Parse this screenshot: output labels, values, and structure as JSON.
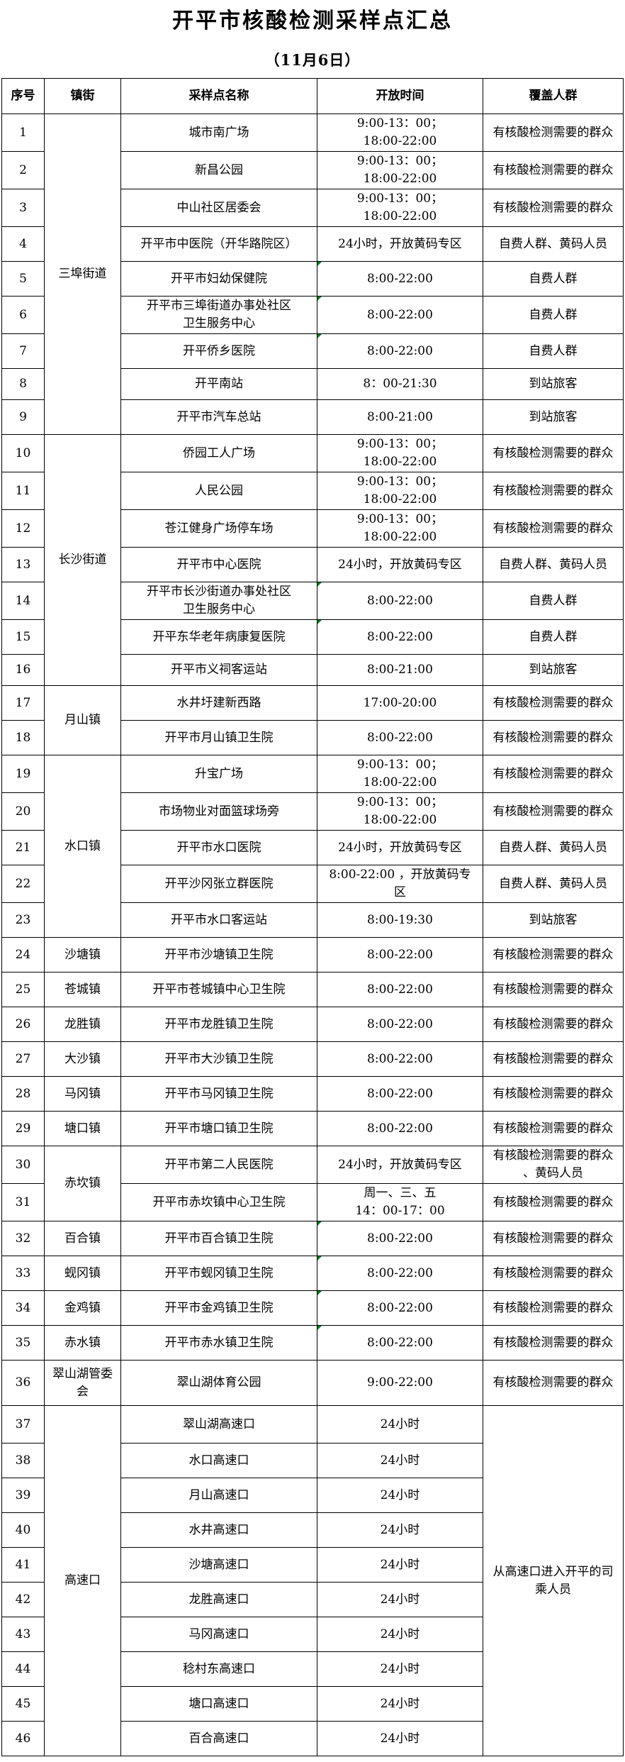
{
  "title": "开平市核酸检测采样点汇总",
  "subtitle": "（11月6日）",
  "colors": {
    "comment_marker": "#077D1E",
    "border": "#000000",
    "text": "#000000"
  },
  "table": {
    "columns": [
      "序号",
      "镇街",
      "采样点名称",
      "开放时间",
      "覆盖人群"
    ],
    "rows": [
      {
        "no": "1",
        "town": "三埠街道",
        "town_span": 9,
        "name": "城市南广场",
        "time": "9:00-13：00；\n18:00-22:00",
        "coverage": "有核酸检测需要的群众"
      },
      {
        "no": "2",
        "name": "新昌公园",
        "time": "9:00-13：00；\n18:00-22:00",
        "coverage": "有核酸检测需要的群众"
      },
      {
        "no": "3",
        "name": "中山社区居委会",
        "time": "9:00-13：00；\n18:00-22:00",
        "coverage": "有核酸检测需要的群众"
      },
      {
        "no": "4",
        "name": "开平市中医院（开华路院区）",
        "time": "24小时，开放黄码专区",
        "coverage": "自费人群、黄码人员"
      },
      {
        "no": "5",
        "name": "开平市妇幼保健院",
        "time": "8:00-22:00",
        "marker": true,
        "coverage": "自费人群"
      },
      {
        "no": "6",
        "name": "开平市三埠街道办事处社区\n卫生服务中心",
        "time": "8:00-22:00",
        "marker": true,
        "coverage": "自费人群"
      },
      {
        "no": "7",
        "name": "开平侨乡医院",
        "time": "8:00-22:00",
        "marker": true,
        "coverage": "自费人群"
      },
      {
        "no": "8",
        "name": "开平南站",
        "time": "8：00-21:30",
        "coverage": "到站旅客"
      },
      {
        "no": "9",
        "name": "开平市汽车总站",
        "time": "8:00-21:00",
        "coverage": "到站旅客"
      },
      {
        "no": "10",
        "town": "长沙街道",
        "town_span": 7,
        "name": "侨园工人广场",
        "time": "9:00-13：00；\n18:00-22:00",
        "coverage": "有核酸检测需要的群众"
      },
      {
        "no": "11",
        "name": "人民公园",
        "time": "9:00-13：00；\n18:00-22:00",
        "coverage": "有核酸检测需要的群众"
      },
      {
        "no": "12",
        "name": "苍江健身广场停车场",
        "time": "9:00-13：00；\n18:00-22:00",
        "coverage": "有核酸检测需要的群众"
      },
      {
        "no": "13",
        "name": "开平市中心医院",
        "time": "24小时，开放黄码专区",
        "coverage": "自费人群、黄码人员"
      },
      {
        "no": "14",
        "name": "开平市长沙街道办事处社区\n卫生服务中心",
        "time": "8:00-22:00",
        "marker": true,
        "coverage": "自费人群"
      },
      {
        "no": "15",
        "name": "开平东华老年病康复医院",
        "time": "8:00-22:00",
        "marker": true,
        "coverage": "自费人群"
      },
      {
        "no": "16",
        "name": "开平市义祠客运站",
        "time": "8:00-21:00",
        "coverage": "到站旅客"
      },
      {
        "no": "17",
        "town": "月山镇",
        "town_span": 2,
        "name": "水井圩建新西路",
        "time": "17:00-20:00",
        "coverage": "有核酸检测需要的群众"
      },
      {
        "no": "18",
        "name": "开平市月山镇卫生院",
        "time": "8:00-22:00",
        "coverage": "有核酸检测需要的群众"
      },
      {
        "no": "19",
        "town": "水口镇",
        "town_span": 5,
        "name": "升宝广场",
        "time": "9:00-13：00；\n18:00-22:00",
        "coverage": "有核酸检测需要的群众"
      },
      {
        "no": "20",
        "name": "市场物业对面篮球场旁",
        "time": "9:00-13：00；\n18:00-22:00",
        "coverage": "有核酸检测需要的群众"
      },
      {
        "no": "21",
        "name": "开平市水口医院",
        "time": "24小时，开放黄码专区",
        "coverage": "自费人群、黄码人员"
      },
      {
        "no": "22",
        "name": "开平沙冈张立群医院",
        "time": "8:00-22:00 ，开放黄码专\n区",
        "coverage": "自费人群、黄码人员"
      },
      {
        "no": "23",
        "name": "开平市水口客运站",
        "time": "8:00-19:30",
        "coverage": "到站旅客"
      },
      {
        "no": "24",
        "town": "沙塘镇",
        "name": "开平市沙塘镇卫生院",
        "time": "8:00-22:00",
        "coverage": "有核酸检测需要的群众"
      },
      {
        "no": "25",
        "town": "苍城镇",
        "name": "开平市苍城镇中心卫生院",
        "time": "8:00-22:00",
        "coverage": "有核酸检测需要的群众"
      },
      {
        "no": "26",
        "town": "龙胜镇",
        "name": "开平市龙胜镇卫生院",
        "time": "8:00-22:00",
        "coverage": "有核酸检测需要的群众"
      },
      {
        "no": "27",
        "town": "大沙镇",
        "name": "开平市大沙镇卫生院",
        "time": "8:00-22:00",
        "coverage": "有核酸检测需要的群众"
      },
      {
        "no": "28",
        "town": "马冈镇",
        "name": "开平市马冈镇卫生院",
        "time": "8:00-22:00",
        "coverage": "有核酸检测需要的群众"
      },
      {
        "no": "29",
        "town": "塘口镇",
        "name": "开平市塘口镇卫生院",
        "time": "8:00-22:00",
        "coverage": "有核酸检测需要的群众"
      },
      {
        "no": "30",
        "town": "赤坎镇",
        "town_span": 2,
        "name": "开平市第二人民医院",
        "time": "24小时，开放黄码专区",
        "coverage": "有核酸检测需要的群众\n、黄码人员"
      },
      {
        "no": "31",
        "name": "开平市赤坎镇中心卫生院",
        "time": "周一、三、五\n14：00-17：00",
        "coverage": "有核酸检测需要的群众"
      },
      {
        "no": "32",
        "town": "百合镇",
        "name": "开平市百合镇卫生院",
        "time": "8:00-22:00",
        "marker": true,
        "coverage": "有核酸检测需要的群众"
      },
      {
        "no": "33",
        "town": "蚬冈镇",
        "name": "开平市蚬冈镇卫生院",
        "time": "8:00-22:00",
        "marker": true,
        "coverage": "有核酸检测需要的群众"
      },
      {
        "no": "34",
        "town": "金鸡镇",
        "name": "开平市金鸡镇卫生院",
        "time": "8:00-22:00",
        "marker": true,
        "coverage": "有核酸检测需要的群众"
      },
      {
        "no": "35",
        "town": "赤水镇",
        "name": "开平市赤水镇卫生院",
        "time": "8:00-22:00",
        "marker": true,
        "coverage": "有核酸检测需要的群众"
      },
      {
        "no": "36",
        "town": "翠山湖管委会",
        "name": "翠山湖体育公园",
        "time": "9:00-22:00",
        "coverage": "有核酸检测需要的群众"
      },
      {
        "no": "37",
        "town": "高速口",
        "town_span": 10,
        "name": "翠山湖高速口",
        "time": "24小时",
        "coverage": "从高速口进入开平的司\n乘人员",
        "coverage_span": 10
      },
      {
        "no": "38",
        "name": "水口高速口",
        "time": "24小时"
      },
      {
        "no": "39",
        "name": "月山高速口",
        "time": "24小时"
      },
      {
        "no": "40",
        "name": "水井高速口",
        "time": "24小时"
      },
      {
        "no": "41",
        "name": "沙塘高速口",
        "time": "24小时"
      },
      {
        "no": "42",
        "name": "龙胜高速口",
        "time": "24小时"
      },
      {
        "no": "43",
        "name": "马冈高速口",
        "time": "24小时"
      },
      {
        "no": "44",
        "name": "稔村东高速口",
        "time": "24小时"
      },
      {
        "no": "45",
        "name": "塘口高速口",
        "time": "24小时"
      },
      {
        "no": "46",
        "name": "百合高速口",
        "time": "24小时"
      }
    ]
  }
}
